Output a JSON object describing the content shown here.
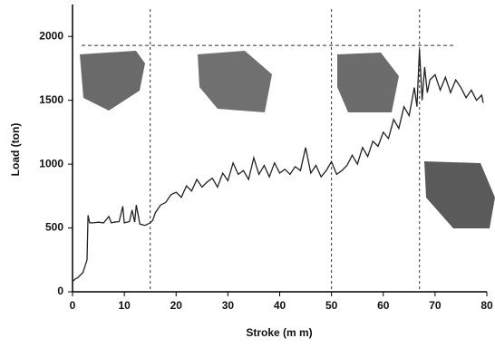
{
  "chart_data": {
    "type": "line",
    "x_label": "Stroke (m m)",
    "y_label": "Load (ton)",
    "xlim": [
      0,
      80
    ],
    "ylim": [
      0,
      2250
    ],
    "xticks": [
      0,
      10,
      20,
      30,
      40,
      50,
      60,
      70,
      80
    ],
    "yticks": [
      0,
      500,
      1000,
      1500,
      2000
    ],
    "x": [
      0,
      0.5,
      1,
      2,
      2.8,
      3,
      3.3,
      4,
      5,
      6,
      7,
      7.5,
      8,
      9,
      9.7,
      10,
      11,
      11.5,
      12,
      12.3,
      13,
      14,
      15,
      15.5,
      16,
      17,
      18,
      19,
      20,
      21,
      22,
      23,
      24,
      25,
      26,
      27,
      28,
      29,
      30,
      31,
      32,
      33,
      34,
      35,
      36,
      37,
      38,
      39,
      40,
      41,
      42,
      43,
      44,
      45,
      46,
      47,
      48,
      49,
      50,
      51,
      52,
      53,
      54,
      55,
      56,
      57,
      58,
      59,
      60,
      61,
      62,
      63,
      64,
      65,
      66,
      66.5,
      67,
      67.5,
      68,
      68.5,
      69,
      70,
      71,
      72,
      73,
      74,
      75,
      76,
      77,
      78,
      79,
      79.3
    ],
    "series": [
      {
        "color": "#222222",
        "values": [
          80,
          100,
          110,
          150,
          250,
          600,
          540,
          540,
          545,
          540,
          590,
          540,
          545,
          550,
          670,
          540,
          550,
          640,
          545,
          680,
          530,
          520,
          540,
          560,
          620,
          680,
          700,
          760,
          780,
          740,
          830,
          790,
          880,
          820,
          860,
          890,
          820,
          930,
          870,
          1010,
          920,
          950,
          880,
          1050,
          920,
          990,
          900,
          1010,
          930,
          960,
          920,
          980,
          950,
          1130,
          930,
          990,
          900,
          950,
          1020,
          920,
          950,
          990,
          1070,
          1000,
          1130,
          1060,
          1180,
          1140,
          1250,
          1200,
          1350,
          1280,
          1450,
          1380,
          1600,
          1450,
          1900,
          1500,
          1760,
          1560,
          1660,
          1700,
          1580,
          1680,
          1560,
          1660,
          1600,
          1520,
          1580,
          1500,
          1540,
          1480
        ]
      }
    ],
    "vlines": [
      15,
      50,
      67
    ],
    "hline": 1930
  }
}
